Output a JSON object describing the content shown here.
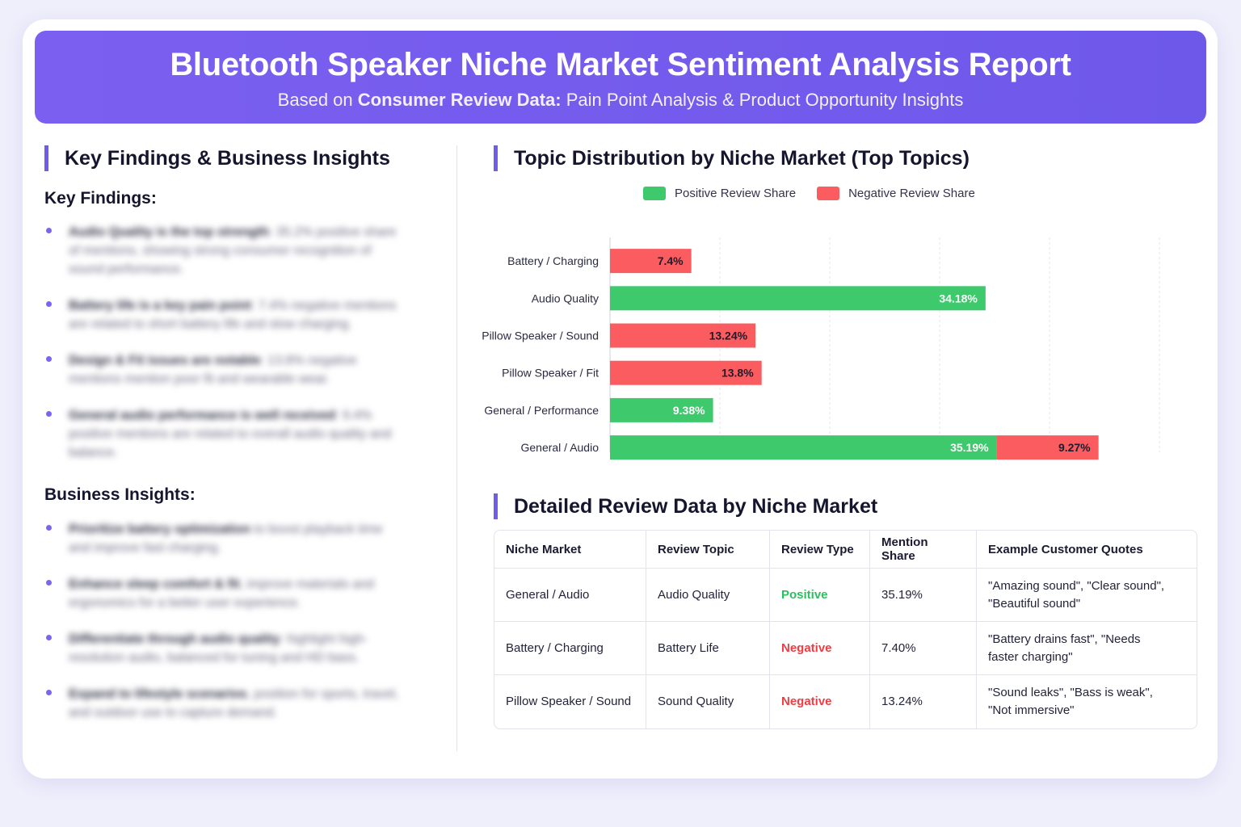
{
  "header": {
    "title": "Bluetooth Speaker Niche Market Sentiment Analysis Report",
    "subtitle_prefix": "Based on ",
    "subtitle_bold": "Consumer Review Data:",
    "subtitle_suffix": " Pain Point Analysis & Product Opportunity Insights"
  },
  "left": {
    "title": "Key Findings & Business Insights",
    "findings_title": "Key Findings:",
    "findings": [
      {
        "bold": "Audio Quality is the top strength",
        "text": ": 35.2% positive share of mentions, showing strong consumer recognition of sound performance."
      },
      {
        "bold": "Battery life is a key pain point",
        "text": ": 7.4% negative mentions are related to short battery life and slow charging."
      },
      {
        "bold": "Design & Fit issues are notable",
        "text": ": 13.8% negative mentions mention poor fit and wearable wear."
      },
      {
        "bold": "General audio performance is well received",
        "text": ": 9.4% positive mentions are related to overall audio quality and balance."
      }
    ],
    "insights_title": "Business Insights:",
    "insights": [
      {
        "bold": "Prioritize battery optimization",
        "text": " to boost playback time and improve fast charging."
      },
      {
        "bold": "Enhance sleep comfort & fit",
        "text": ", improve materials and ergonomics for a better user experience."
      },
      {
        "bold": "Differentiate through audio quality",
        "text": ": highlight high-resolution audio, balanced for tuning and HD bass."
      },
      {
        "bold": "Expand to lifestyle scenarios",
        "text": ", position for sports, travel, and outdoor use to capture demand."
      }
    ]
  },
  "chart_section": {
    "title": "Topic Distribution by Niche Market (Top Topics)"
  },
  "chart_data": {
    "type": "bar",
    "orientation": "horizontal",
    "stacked": true,
    "categories": [
      "Battery / Charging",
      "Audio Quality",
      "Pillow Speaker / Sound",
      "Pillow Speaker / Fit",
      "General / Performance",
      "General / Audio"
    ],
    "series": [
      {
        "name": "Positive Review Share",
        "color": "#3ec96d",
        "values": [
          0,
          34.18,
          0,
          0,
          9.38,
          35.19
        ],
        "labels": [
          "",
          "34.18%",
          "",
          "",
          "9.38%",
          "35.19%"
        ]
      },
      {
        "name": "Negative Review Share",
        "color": "#fb5c60",
        "values": [
          7.4,
          0,
          13.24,
          13.8,
          0,
          9.27
        ],
        "labels": [
          "7.4%",
          "",
          "13.24%",
          "13.8%",
          "",
          "9.27%"
        ]
      }
    ],
    "xlim": [
      0,
      50
    ],
    "xticks": [
      "0",
      "10",
      "20",
      "30",
      "40",
      "50"
    ],
    "grid": true,
    "legend_position": "top"
  },
  "table_section": {
    "title": "Detailed Review Data by Niche Market",
    "headers": [
      "Niche Market",
      "Review Topic",
      "Review Type",
      "Mention Share",
      "Example Customer Quotes"
    ],
    "rows": [
      {
        "market": "General / Audio",
        "topic": "Audio Quality",
        "type": "Positive",
        "share": "35.19%",
        "quote1": "\"Amazing sound\", \"Clear sound\",",
        "quote2": "\"Beautiful sound\""
      },
      {
        "market": "Battery / Charging",
        "topic": "Battery Life",
        "type": "Negative",
        "share": "7.40%",
        "quote1": "\"Battery drains fast\", \"Needs",
        "quote2": "faster charging\""
      },
      {
        "market": "Pillow Speaker / Sound",
        "topic": "Sound Quality",
        "type": "Negative",
        "share": "13.24%",
        "quote1": "\"Sound leaks\", \"Bass is weak\",",
        "quote2": "\"Not immersive\""
      }
    ]
  }
}
